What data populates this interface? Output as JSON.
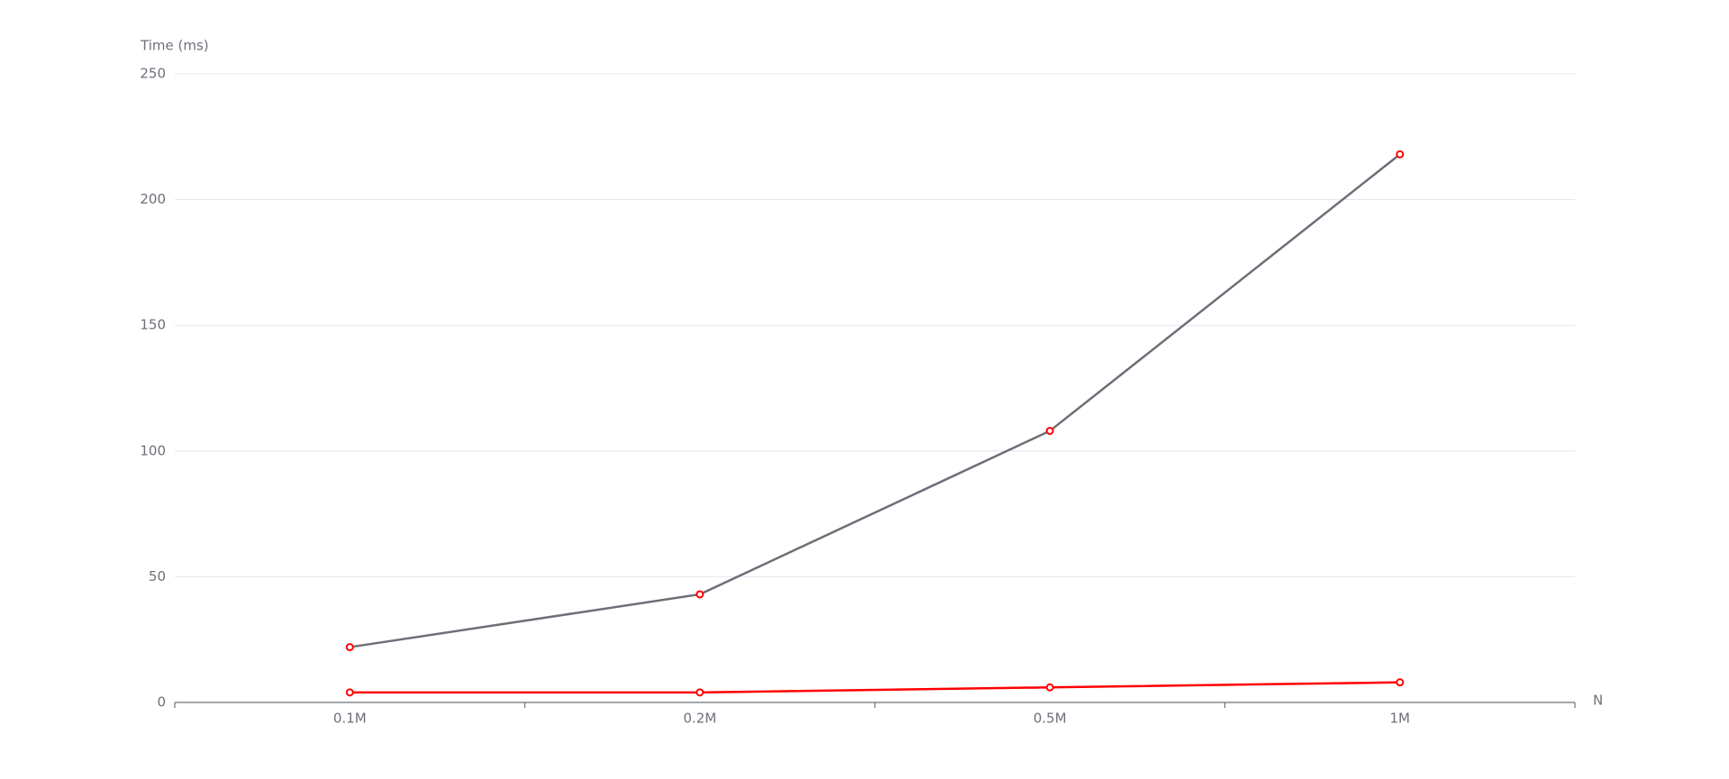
{
  "chart_data": {
    "type": "line",
    "y_axis_label": "Time (ms)",
    "x_axis_label": "N",
    "categories": [
      "0.1M",
      "0.2M",
      "0.5M",
      "1M"
    ],
    "series": [
      {
        "color": "#6e6e78",
        "marker_color": "#ff0000",
        "values": [
          22,
          43,
          108,
          218
        ]
      },
      {
        "color": "#ff0000",
        "marker_color": "#ff0000",
        "values": [
          4,
          4,
          6,
          8
        ]
      }
    ],
    "ylim": [
      0,
      250
    ],
    "yticks": [
      0,
      50,
      100,
      150,
      200,
      250
    ],
    "grid": true
  }
}
